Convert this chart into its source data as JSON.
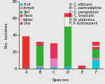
{
  "species": [
    "A",
    "B",
    "C",
    "D",
    "E",
    "F"
  ],
  "xlabel": "Species",
  "ylabel": "No. isolates",
  "ylim": [
    0,
    80
  ],
  "yticks": [
    0,
    20,
    40,
    60,
    80
  ],
  "sources": [
    "Fruit",
    "Armpit",
    "Soil",
    "Hand",
    "Water",
    "Oral"
  ],
  "source_colors": [
    "#00c8d0",
    "#e080c0",
    "#30b030",
    "#e83060",
    "#f0f0f0",
    "#e83030"
  ],
  "legend_right": [
    "A: C. albicans",
    "B: C. palmiolephila",
    "C: C. parapsilosis",
    "D: C. tropicalis",
    "E: N. glabratus",
    "F: P. kudriavzevii"
  ],
  "bars": {
    "A": [
      1,
      0,
      0,
      0,
      0,
      38
    ],
    "B": [
      2,
      2,
      24,
      2,
      0,
      2
    ],
    "C": [
      2,
      11,
      0,
      14,
      0,
      3
    ],
    "D": [
      3,
      0,
      47,
      0,
      12,
      4
    ],
    "E": [
      0,
      0,
      0,
      0,
      0,
      4
    ],
    "F": [
      10,
      3,
      11,
      2,
      2,
      4
    ]
  },
  "tick_fontsize": 4.0,
  "legend_fontsize": 3.5,
  "label_fontsize": 4.5,
  "bar_width": 0.5,
  "bg_color": "#e8e8e8"
}
